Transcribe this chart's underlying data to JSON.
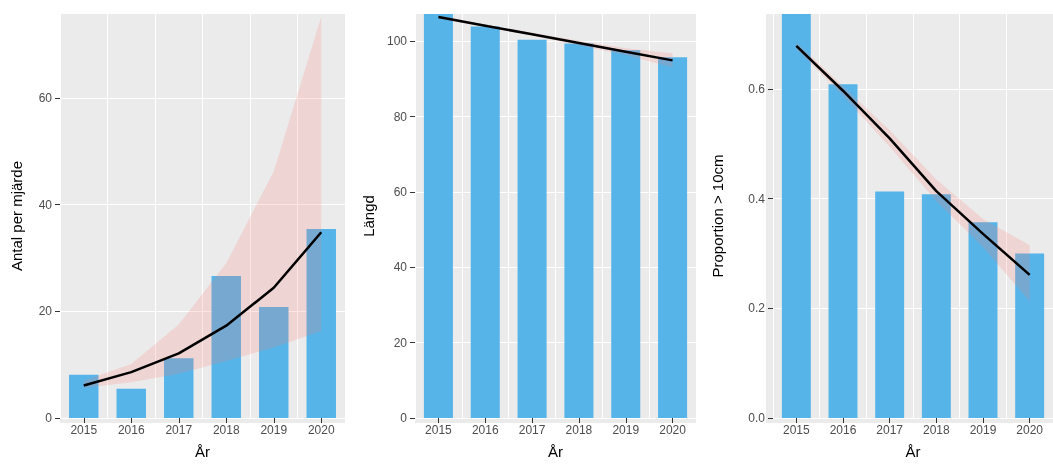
{
  "chart_data": [
    {
      "type": "bar",
      "categories": [
        "2015",
        "2016",
        "2017",
        "2018",
        "2019",
        "2020"
      ],
      "xlabel": "År",
      "ylabel": "Antal per mjärde",
      "ylim": [
        0,
        75.7
      ],
      "yticks": [
        0,
        20,
        40,
        60
      ],
      "grid": true,
      "marker": "none",
      "series": [
        {
          "color": "#56b4e9",
          "values": [
            8.1,
            5.5,
            11.2,
            26.6,
            20.8,
            35.4
          ]
        },
        {
          "type": "line",
          "color": "#000000",
          "values": [
            6.1,
            8.6,
            12.1,
            17.3,
            24.4,
            34.8
          ],
          "lower": [
            5.6,
            6.7,
            8.3,
            10.7,
            13.2,
            16.3
          ],
          "upper": [
            7.0,
            10.1,
            17.5,
            29.0,
            46.2,
            75.2
          ]
        }
      ]
    },
    {
      "type": "bar",
      "categories": [
        "2015",
        "2016",
        "2017",
        "2018",
        "2019",
        "2020"
      ],
      "xlabel": "År",
      "ylabel": "Längd",
      "ylim": [
        0,
        107.2
      ],
      "yticks": [
        0,
        20,
        40,
        60,
        80,
        100
      ],
      "grid": true,
      "marker": "none",
      "series": [
        {
          "color": "#56b4e9",
          "values": [
            107.2,
            103.9,
            100.4,
            99.4,
            97.6,
            95.7
          ]
        },
        {
          "type": "line",
          "color": "#000000",
          "values": [
            106.4,
            104.1,
            101.8,
            99.5,
            97.2,
            94.9
          ],
          "lower": [
            106.0,
            103.8,
            101.4,
            98.9,
            96.3,
            93.0
          ],
          "upper": [
            106.8,
            104.4,
            102.2,
            100.1,
            98.1,
            96.8
          ]
        }
      ]
    },
    {
      "type": "bar",
      "categories": [
        "2015",
        "2016",
        "2017",
        "2018",
        "2019",
        "2020"
      ],
      "xlabel": "År",
      "ylabel": "Proportion > 10cm",
      "ylim": [
        0,
        0.737
      ],
      "yticks": [
        {
          "value": 0,
          "label": "0.0"
        },
        {
          "value": 0.2,
          "label": "0.2"
        },
        {
          "value": 0.4,
          "label": "0.4"
        },
        {
          "value": 0.6,
          "label": "0.6"
        }
      ],
      "grid": true,
      "marker": "none",
      "series": [
        {
          "color": "#56b4e9",
          "values": [
            0.737,
            0.609,
            0.413,
            0.408,
            0.357,
            0.3
          ]
        },
        {
          "type": "line",
          "color": "#000000",
          "values": [
            0.679,
            0.597,
            0.51,
            0.414,
            0.336,
            0.261
          ],
          "lower": [
            0.673,
            0.588,
            0.495,
            0.396,
            0.312,
            0.213
          ],
          "upper": [
            0.685,
            0.605,
            0.525,
            0.435,
            0.363,
            0.315
          ]
        }
      ]
    }
  ]
}
